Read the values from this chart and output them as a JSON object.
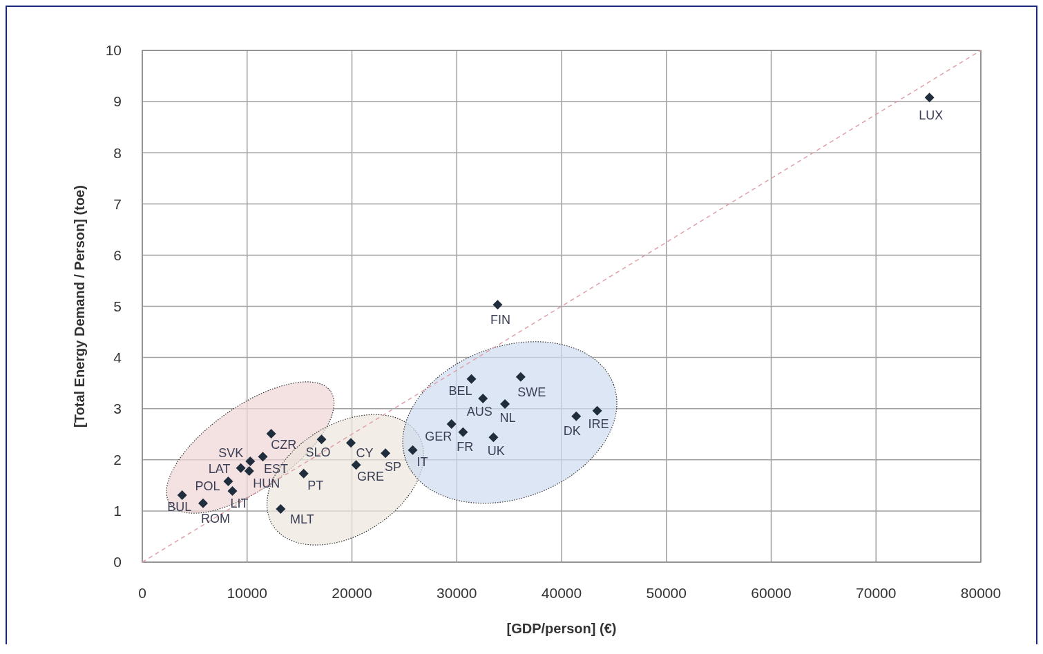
{
  "chart_data": {
    "type": "scatter",
    "xlabel": "[GDP/person] (€)",
    "ylabel": "[Total Energy Demand / Person] (toe)",
    "xlim": [
      0,
      80000
    ],
    "xticks": [
      0,
      10000,
      20000,
      30000,
      40000,
      50000,
      60000,
      70000,
      80000
    ],
    "ylim": [
      0,
      10
    ],
    "yticks": [
      0,
      1,
      2,
      3,
      4,
      5,
      6,
      7,
      8,
      9,
      10
    ],
    "grid": true,
    "marker": "diamond",
    "series": [
      {
        "color": "#1f2d3d",
        "x": [
          3800,
          5800,
          8200,
          8600,
          9400,
          10300,
          10200,
          11500,
          12300,
          17100,
          15400,
          13200,
          19900,
          20400,
          23200,
          25800,
          29500,
          30600,
          31400,
          32500,
          34600,
          36100,
          33500,
          41400,
          43400,
          33900,
          75100
        ],
        "values": [
          1.31,
          1.15,
          1.58,
          1.39,
          1.84,
          1.97,
          1.78,
          2.06,
          2.51,
          2.4,
          1.73,
          1.04,
          2.33,
          1.9,
          2.13,
          2.19,
          2.7,
          2.54,
          3.58,
          3.2,
          3.09,
          3.62,
          2.44,
          2.85,
          2.96,
          5.03,
          9.08
        ]
      },
      {
        "type": "line",
        "color": "#e0a0a8",
        "line_style": "dashed",
        "marker": "none",
        "x": [
          0,
          80000
        ],
        "values": [
          0,
          10
        ]
      }
    ],
    "annotations": [
      {
        "text": "BUL",
        "x": 3800,
        "y": 1.31
      },
      {
        "text": "ROM",
        "x": 5800,
        "y": 1.15
      },
      {
        "text": "POL",
        "x": 8200,
        "y": 1.58
      },
      {
        "text": "LIT",
        "x": 8600,
        "y": 1.39
      },
      {
        "text": "LAT",
        "x": 9400,
        "y": 1.84
      },
      {
        "text": "SVK",
        "x": 10300,
        "y": 1.97
      },
      {
        "text": "HUN",
        "x": 10200,
        "y": 1.78
      },
      {
        "text": "EST",
        "x": 11500,
        "y": 2.06
      },
      {
        "text": "CZR",
        "x": 12300,
        "y": 2.51
      },
      {
        "text": "SLO",
        "x": 17100,
        "y": 2.4
      },
      {
        "text": "PT",
        "x": 15400,
        "y": 1.73
      },
      {
        "text": "MLT",
        "x": 13200,
        "y": 1.04
      },
      {
        "text": "CY",
        "x": 19900,
        "y": 2.33
      },
      {
        "text": "GRE",
        "x": 20400,
        "y": 1.9
      },
      {
        "text": "SP",
        "x": 23200,
        "y": 2.13
      },
      {
        "text": "IT",
        "x": 25800,
        "y": 2.19
      },
      {
        "text": "GER",
        "x": 29500,
        "y": 2.7
      },
      {
        "text": "FR",
        "x": 30600,
        "y": 2.54
      },
      {
        "text": "BEL",
        "x": 31400,
        "y": 3.58
      },
      {
        "text": "AUS",
        "x": 32500,
        "y": 3.2
      },
      {
        "text": "NL",
        "x": 34600,
        "y": 3.09
      },
      {
        "text": "SWE",
        "x": 36100,
        "y": 3.62
      },
      {
        "text": "UK",
        "x": 33500,
        "y": 2.44
      },
      {
        "text": "DK",
        "x": 41400,
        "y": 2.85
      },
      {
        "text": "IRE",
        "x": 43400,
        "y": 2.96
      },
      {
        "text": "FIN",
        "x": 33900,
        "y": 5.03
      },
      {
        "text": "LUX",
        "x": 75100,
        "y": 9.08
      }
    ]
  }
}
